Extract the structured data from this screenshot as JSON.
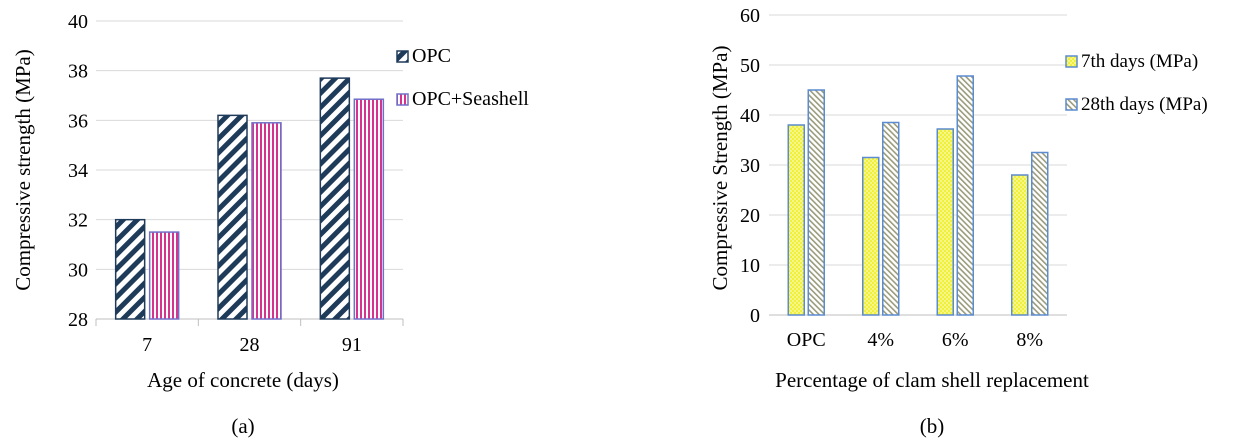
{
  "chart_data": [
    {
      "type": "bar",
      "panel_label": "(a)",
      "xlabel": "Age of concrete (days)",
      "ylabel": "Compressive strength (MPa)",
      "categories": [
        "7",
        "28",
        "91"
      ],
      "ylim": [
        28,
        40
      ],
      "yticks": [
        "28",
        "30",
        "32",
        "34",
        "36",
        "38",
        "40"
      ],
      "grid": true,
      "legend_position": "right",
      "series": [
        {
          "name": "OPC",
          "values": [
            32.0,
            36.2,
            37.7
          ],
          "color": "#1f3b5a",
          "pattern": "diagonal"
        },
        {
          "name": "OPC+Seashell",
          "values": [
            31.5,
            35.9,
            36.85
          ],
          "color": "#d6338f",
          "pattern": "vertical"
        }
      ]
    },
    {
      "type": "bar",
      "panel_label": "(b)",
      "xlabel": "Percentage of clam shell replacement",
      "ylabel": "Compressive Strength (MPa)",
      "categories": [
        "OPC",
        "4%",
        "6%",
        "8%"
      ],
      "ylim": [
        0,
        60
      ],
      "yticks": [
        "0",
        "10",
        "20",
        "30",
        "40",
        "50",
        "60"
      ],
      "grid": true,
      "legend_position": "right",
      "series": [
        {
          "name": "7th days (MPa)",
          "values": [
            38,
            31.5,
            37.2,
            28
          ],
          "color": "#f0f03a",
          "pattern": "dotted"
        },
        {
          "name": "28th days (MPa)",
          "values": [
            45,
            38.5,
            47.8,
            32.5
          ],
          "color": "#c9c9a8",
          "pattern": "hatched"
        }
      ]
    }
  ]
}
